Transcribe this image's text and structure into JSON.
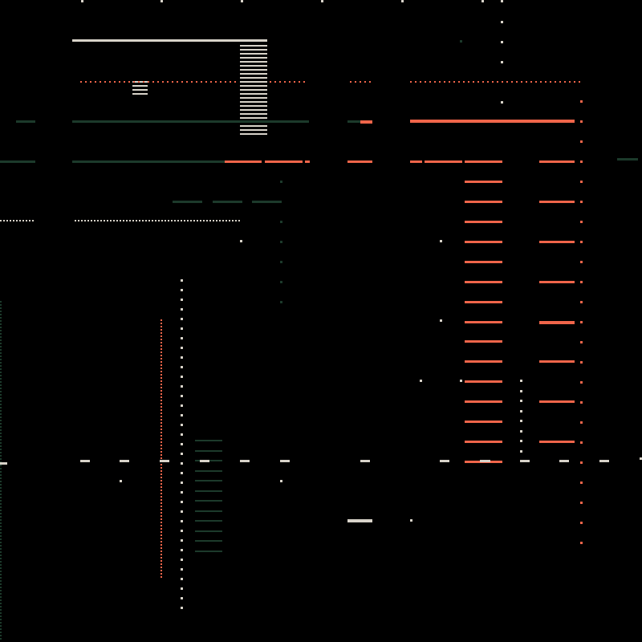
{
  "colors": {
    "background": "#000000",
    "cream": "#d8d3c9",
    "coral": "#f0654a",
    "green": "#1c3a2b"
  }
}
